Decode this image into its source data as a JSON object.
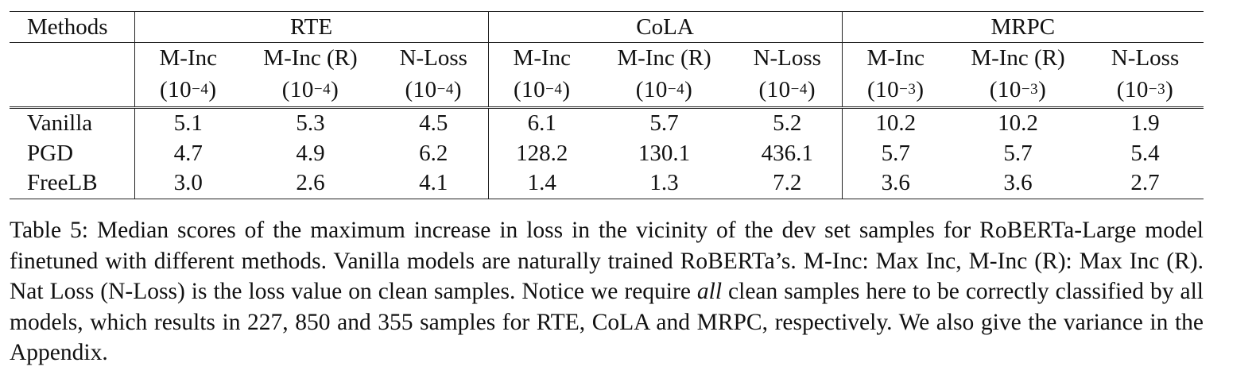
{
  "table": {
    "corner_label": "Methods",
    "groups": [
      "RTE",
      "CoLA",
      "MRPC"
    ],
    "metrics": [
      "M-Inc",
      "M-Inc (R)",
      "N-Loss",
      "M-Inc",
      "M-Inc (R)",
      "N-Loss",
      "M-Inc",
      "M-Inc (R)",
      "N-Loss"
    ],
    "units": [
      {
        "base": "(10",
        "exp": "−4",
        "close": ")"
      },
      {
        "base": "(10",
        "exp": "−4",
        "close": ")"
      },
      {
        "base": "(10",
        "exp": "−4",
        "close": ")"
      },
      {
        "base": "(10",
        "exp": "−4",
        "close": ")"
      },
      {
        "base": "(10",
        "exp": "−4",
        "close": ")"
      },
      {
        "base": "(10",
        "exp": "−4",
        "close": ")"
      },
      {
        "base": "(10",
        "exp": "−3",
        "close": ")"
      },
      {
        "base": "(10",
        "exp": "−3",
        "close": ")"
      },
      {
        "base": "(10",
        "exp": "−3",
        "close": ")"
      }
    ],
    "rows": [
      {
        "method": "Vanilla",
        "values": [
          "5.1",
          "5.3",
          "4.5",
          "6.1",
          "5.7",
          "5.2",
          "10.2",
          "10.2",
          "1.9"
        ]
      },
      {
        "method": "PGD",
        "values": [
          "4.7",
          "4.9",
          "6.2",
          "128.2",
          "130.1",
          "436.1",
          "5.7",
          "5.7",
          "5.4"
        ]
      },
      {
        "method": "FreeLB",
        "values": [
          "3.0",
          "2.6",
          "4.1",
          "1.4",
          "1.3",
          "7.2",
          "3.6",
          "3.6",
          "2.7"
        ]
      }
    ]
  },
  "caption": {
    "label": "Table 5:",
    "part1": " Median scores of the maximum increase in loss in the vicinity of the dev set samples for RoBERTa-Large model finetuned with different methods. Vanilla models are naturally trained RoBERTa’s. M-Inc: Max Inc, M-Inc (R): Max Inc (R). Nat Loss (N-Loss) is the loss value on clean samples. Notice we require ",
    "emphasis": "all",
    "part2": " clean samples here to be correctly classified by all models, which results in 227, 850 and 355 samples for RTE, CoLA and MRPC, respectively. We also give the variance in the Appendix."
  }
}
